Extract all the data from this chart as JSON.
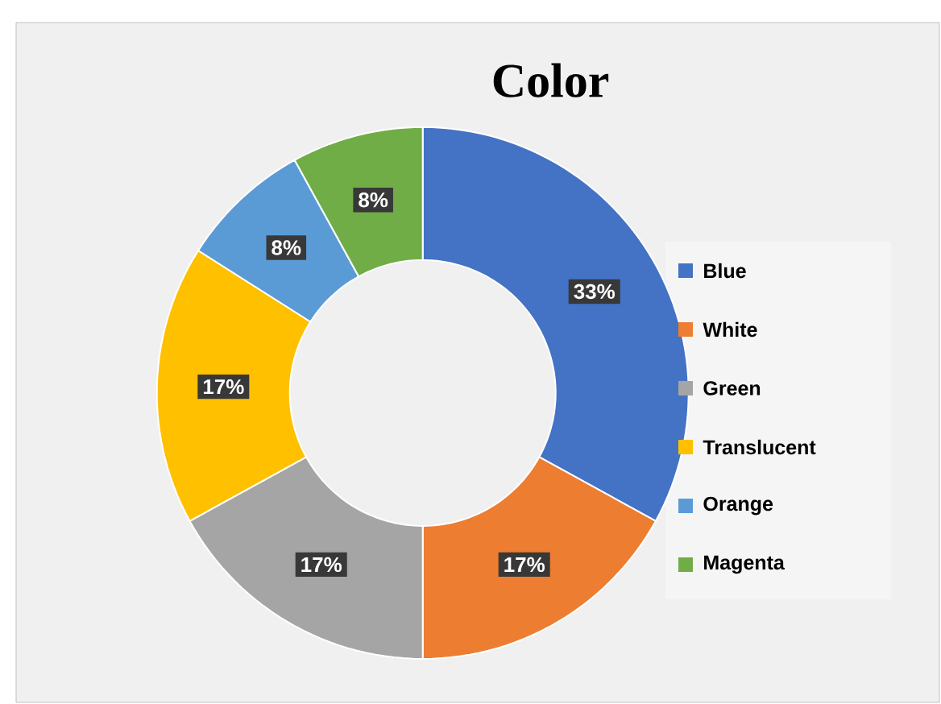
{
  "chart_data": {
    "type": "donut",
    "title": "Color",
    "categories": [
      "Blue",
      "White",
      "Green",
      "Translucent",
      "Orange",
      "Magenta"
    ],
    "values": [
      33,
      17,
      17,
      17,
      8,
      8
    ],
    "value_labels": [
      "33%",
      "17%",
      "17%",
      "17%",
      "8%",
      "8%"
    ],
    "colors": [
      "#4472c4",
      "#ed7d31",
      "#a5a5a5",
      "#ffc000",
      "#5b9bd5",
      "#70ad47"
    ],
    "legend": "right"
  }
}
